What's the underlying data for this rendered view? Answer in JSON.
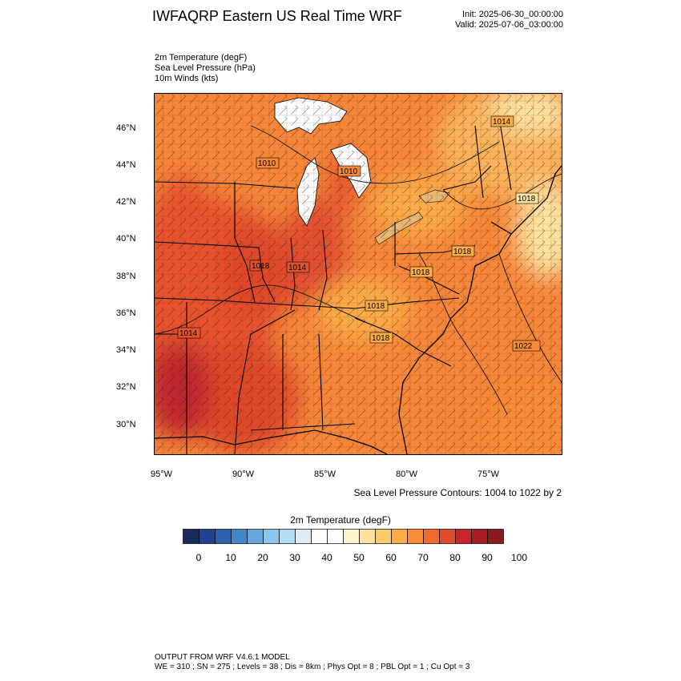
{
  "header": {
    "title": "IWFAQRP Eastern US Real Time WRF",
    "init": "Init: 2025-06-30_00:00:00",
    "valid": "Valid: 2025-07-06_03:00:00"
  },
  "fields": [
    "2m Temperature   (degF)",
    "Sea Level Pressure   (hPa)",
    "10m Winds   (kts)"
  ],
  "map": {
    "lat_labels": [
      "46°N",
      "44°N",
      "42°N",
      "40°N",
      "38°N",
      "36°N",
      "34°N",
      "32°N",
      "30°N"
    ],
    "lon_labels": [
      "95°W",
      "90°W",
      "85°W",
      "80°W",
      "75°W"
    ],
    "pressure_labels": [
      "1014",
      "1010",
      "1010",
      "1018",
      "1018",
      "1018",
      "1014",
      "1018",
      "1018",
      "1018",
      "1014",
      "1022"
    ],
    "land_mask_color": "#ffffff",
    "colors": {
      "hot": "#c0272d",
      "warm": "#e8522f",
      "orange": "#f7873a",
      "light": "#fbb45c",
      "pale": "#fde2a0",
      "lake": "#ffffff"
    }
  },
  "contour_note": "Sea Level Pressure Contours: 1004 to 1022 by 2",
  "colorbar": {
    "title": "2m Temperature  (degF)",
    "colors": [
      "#162a5e",
      "#1f4390",
      "#2e62ad",
      "#4288c8",
      "#62a8dc",
      "#8ac6ee",
      "#b3dcf5",
      "#dcecf9",
      "#ffffff",
      "#ffffff",
      "#fff3cf",
      "#fee29c",
      "#fdc96b",
      "#fcac48",
      "#f88c38",
      "#ee6a2e",
      "#df4a2c",
      "#c8262c",
      "#a81c24",
      "#8a1a1c"
    ],
    "labels": [
      "0",
      "10",
      "20",
      "30",
      "40",
      "50",
      "60",
      "70",
      "80",
      "90",
      "100"
    ]
  },
  "footer": {
    "line1": "OUTPUT FROM WRF V4.6.1 MODEL",
    "line2": "WE = 310 ; SN = 275 ; Levels = 38 ; Dis = 8km ; Phys Opt = 8 ; PBL Opt = 1 ; Cu Opt = 3"
  }
}
